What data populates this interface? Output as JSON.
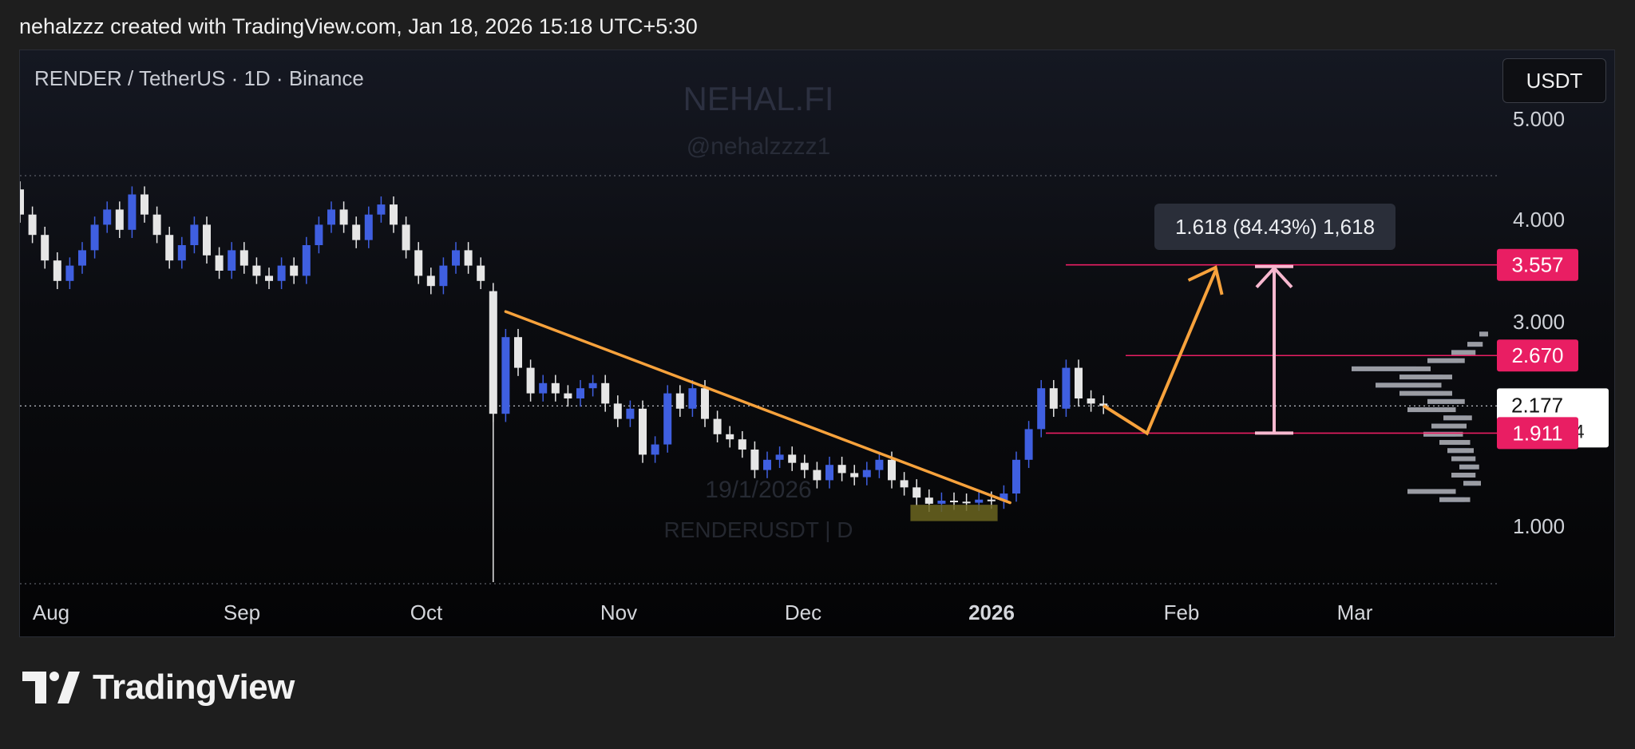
{
  "header": {
    "text": "nehalzzz created with TradingView.com, Jan 18, 2026 15:18 UTC+5:30"
  },
  "symbol": {
    "label": "RENDER / TetherUS · 1D · Binance"
  },
  "currency": {
    "label": "USDT"
  },
  "watermark": {
    "line1": "NEHAL.FI",
    "line2": "@nehalzzzz1",
    "line3": "19/1/2026",
    "line4": "RENDERUSDT | D"
  },
  "footer": {
    "brand": "TradingView",
    "logo_icon": "tradingview-logo-icon"
  },
  "colors": {
    "up": "#3f5fe0",
    "down": "#e6e6e6",
    "accent": "#e91e63",
    "orange": "#f7a23c",
    "measure": "#f7b8cf",
    "box": "#6b6520"
  },
  "chart_data": {
    "type": "candlestick",
    "y_ticks": [
      "5.000",
      "4.000",
      "3.000",
      "1.000"
    ],
    "ylim": [
      1.0,
      5.0
    ],
    "x_ticks": [
      "Aug",
      "Sep",
      "Oct",
      "Nov",
      "Dec",
      "2026",
      "Feb",
      "Mar"
    ],
    "price_labels": [
      {
        "value": "3.557",
        "style": "accent"
      },
      {
        "value": "2.670",
        "style": "accent"
      },
      {
        "value": "2.177",
        "sub": "14:11:24",
        "style": "current"
      },
      {
        "value": "1.911",
        "style": "accent"
      }
    ],
    "fib_label": "1.618 (84.43%) 1,618",
    "trendline": [
      {
        "date": "2025-10-12",
        "price": 3.1
      },
      {
        "date": "2026-01-01",
        "price": 1.23
      }
    ],
    "projection": [
      {
        "date": "2026-01-16",
        "price": 2.18
      },
      {
        "date": "2026-01-23",
        "price": 1.91
      },
      {
        "date": "2026-02-03",
        "price": 3.5
      }
    ],
    "levels": [
      3.557,
      2.67,
      1.911
    ],
    "candles": [
      {
        "d": "2025-07-24",
        "o": 4.45,
        "c": 4.3
      },
      {
        "d": "2025-07-26",
        "o": 4.3,
        "c": 4.05
      },
      {
        "d": "2025-07-28",
        "o": 4.05,
        "c": 3.85
      },
      {
        "d": "2025-07-30",
        "o": 3.85,
        "c": 3.6
      },
      {
        "d": "2025-08-01",
        "o": 3.6,
        "c": 3.4
      },
      {
        "d": "2025-08-03",
        "o": 3.4,
        "c": 3.55
      },
      {
        "d": "2025-08-05",
        "o": 3.55,
        "c": 3.7
      },
      {
        "d": "2025-08-07",
        "o": 3.7,
        "c": 3.95
      },
      {
        "d": "2025-08-09",
        "o": 3.95,
        "c": 4.1
      },
      {
        "d": "2025-08-11",
        "o": 4.1,
        "c": 3.9
      },
      {
        "d": "2025-08-13",
        "o": 3.9,
        "c": 4.25
      },
      {
        "d": "2025-08-15",
        "o": 4.25,
        "c": 4.05
      },
      {
        "d": "2025-08-17",
        "o": 4.05,
        "c": 3.85
      },
      {
        "d": "2025-08-19",
        "o": 3.85,
        "c": 3.6
      },
      {
        "d": "2025-08-21",
        "o": 3.6,
        "c": 3.75
      },
      {
        "d": "2025-08-23",
        "o": 3.75,
        "c": 3.95
      },
      {
        "d": "2025-08-25",
        "o": 3.95,
        "c": 3.65
      },
      {
        "d": "2025-08-27",
        "o": 3.65,
        "c": 3.5
      },
      {
        "d": "2025-08-29",
        "o": 3.5,
        "c": 3.7
      },
      {
        "d": "2025-08-31",
        "o": 3.7,
        "c": 3.55
      },
      {
        "d": "2025-09-02",
        "o": 3.55,
        "c": 3.45
      },
      {
        "d": "2025-09-04",
        "o": 3.45,
        "c": 3.4
      },
      {
        "d": "2025-09-06",
        "o": 3.4,
        "c": 3.55
      },
      {
        "d": "2025-09-08",
        "o": 3.55,
        "c": 3.45
      },
      {
        "d": "2025-09-10",
        "o": 3.45,
        "c": 3.75
      },
      {
        "d": "2025-09-12",
        "o": 3.75,
        "c": 3.95
      },
      {
        "d": "2025-09-14",
        "o": 3.95,
        "c": 4.1
      },
      {
        "d": "2025-09-16",
        "o": 4.1,
        "c": 3.95
      },
      {
        "d": "2025-09-18",
        "o": 3.95,
        "c": 3.8
      },
      {
        "d": "2025-09-20",
        "o": 3.8,
        "c": 4.05
      },
      {
        "d": "2025-09-22",
        "o": 4.05,
        "c": 4.15
      },
      {
        "d": "2025-09-24",
        "o": 4.15,
        "c": 3.95
      },
      {
        "d": "2025-09-26",
        "o": 3.95,
        "c": 3.7
      },
      {
        "d": "2025-09-28",
        "o": 3.7,
        "c": 3.45
      },
      {
        "d": "2025-09-30",
        "o": 3.45,
        "c": 3.35
      },
      {
        "d": "2025-10-02",
        "o": 3.35,
        "c": 3.55
      },
      {
        "d": "2025-10-04",
        "o": 3.55,
        "c": 3.7
      },
      {
        "d": "2025-10-06",
        "o": 3.7,
        "c": 3.55
      },
      {
        "d": "2025-10-08",
        "o": 3.55,
        "c": 3.4
      },
      {
        "d": "2025-10-10",
        "o": 3.3,
        "c": 2.1
      },
      {
        "d": "2025-10-12",
        "o": 2.1,
        "c": 2.85
      },
      {
        "d": "2025-10-14",
        "o": 2.85,
        "c": 2.55
      },
      {
        "d": "2025-10-16",
        "o": 2.55,
        "c": 2.3
      },
      {
        "d": "2025-10-18",
        "o": 2.3,
        "c": 2.4
      },
      {
        "d": "2025-10-20",
        "o": 2.4,
        "c": 2.3
      },
      {
        "d": "2025-10-22",
        "o": 2.3,
        "c": 2.25
      },
      {
        "d": "2025-10-24",
        "o": 2.25,
        "c": 2.35
      },
      {
        "d": "2025-10-26",
        "o": 2.35,
        "c": 2.4
      },
      {
        "d": "2025-10-28",
        "o": 2.4,
        "c": 2.2
      },
      {
        "d": "2025-10-30",
        "o": 2.2,
        "c": 2.05
      },
      {
        "d": "2025-11-01",
        "o": 2.05,
        "c": 2.15
      },
      {
        "d": "2025-11-03",
        "o": 2.15,
        "c": 1.7
      },
      {
        "d": "2025-11-05",
        "o": 1.7,
        "c": 1.8
      },
      {
        "d": "2025-11-07",
        "o": 1.8,
        "c": 2.3
      },
      {
        "d": "2025-11-09",
        "o": 2.3,
        "c": 2.15
      },
      {
        "d": "2025-11-11",
        "o": 2.15,
        "c": 2.35
      },
      {
        "d": "2025-11-13",
        "o": 2.35,
        "c": 2.05
      },
      {
        "d": "2025-11-15",
        "o": 2.05,
        "c": 1.9
      },
      {
        "d": "2025-11-17",
        "o": 1.9,
        "c": 1.85
      },
      {
        "d": "2025-11-19",
        "o": 1.85,
        "c": 1.75
      },
      {
        "d": "2025-11-21",
        "o": 1.75,
        "c": 1.55
      },
      {
        "d": "2025-11-23",
        "o": 1.55,
        "c": 1.65
      },
      {
        "d": "2025-11-25",
        "o": 1.65,
        "c": 1.7
      },
      {
        "d": "2025-11-27",
        "o": 1.7,
        "c": 1.62
      },
      {
        "d": "2025-11-29",
        "o": 1.62,
        "c": 1.55
      },
      {
        "d": "2025-12-01",
        "o": 1.55,
        "c": 1.45
      },
      {
        "d": "2025-12-03",
        "o": 1.45,
        "c": 1.6
      },
      {
        "d": "2025-12-05",
        "o": 1.6,
        "c": 1.52
      },
      {
        "d": "2025-12-07",
        "o": 1.52,
        "c": 1.48
      },
      {
        "d": "2025-12-09",
        "o": 1.48,
        "c": 1.55
      },
      {
        "d": "2025-12-11",
        "o": 1.55,
        "c": 1.65
      },
      {
        "d": "2025-12-13",
        "o": 1.65,
        "c": 1.45
      },
      {
        "d": "2025-12-15",
        "o": 1.45,
        "c": 1.38
      },
      {
        "d": "2025-12-17",
        "o": 1.38,
        "c": 1.28
      },
      {
        "d": "2025-12-19",
        "o": 1.28,
        "c": 1.22
      },
      {
        "d": "2025-12-21",
        "o": 1.22,
        "c": 1.25
      },
      {
        "d": "2025-12-23",
        "o": 1.25,
        "c": 1.24
      },
      {
        "d": "2025-12-25",
        "o": 1.24,
        "c": 1.23
      },
      {
        "d": "2025-12-27",
        "o": 1.23,
        "c": 1.26
      },
      {
        "d": "2025-12-29",
        "o": 1.26,
        "c": 1.25
      },
      {
        "d": "2025-12-31",
        "o": 1.25,
        "c": 1.32
      },
      {
        "d": "2026-01-02",
        "o": 1.32,
        "c": 1.65
      },
      {
        "d": "2026-01-04",
        "o": 1.65,
        "c": 1.95
      },
      {
        "d": "2026-01-06",
        "o": 1.95,
        "c": 2.35
      },
      {
        "d": "2026-01-08",
        "o": 2.35,
        "c": 2.15
      },
      {
        "d": "2026-01-10",
        "o": 2.15,
        "c": 2.55
      },
      {
        "d": "2026-01-12",
        "o": 2.55,
        "c": 2.25
      },
      {
        "d": "2026-01-14",
        "o": 2.25,
        "c": 2.2
      },
      {
        "d": "2026-01-16",
        "o": 2.2,
        "c": 2.177
      }
    ]
  }
}
